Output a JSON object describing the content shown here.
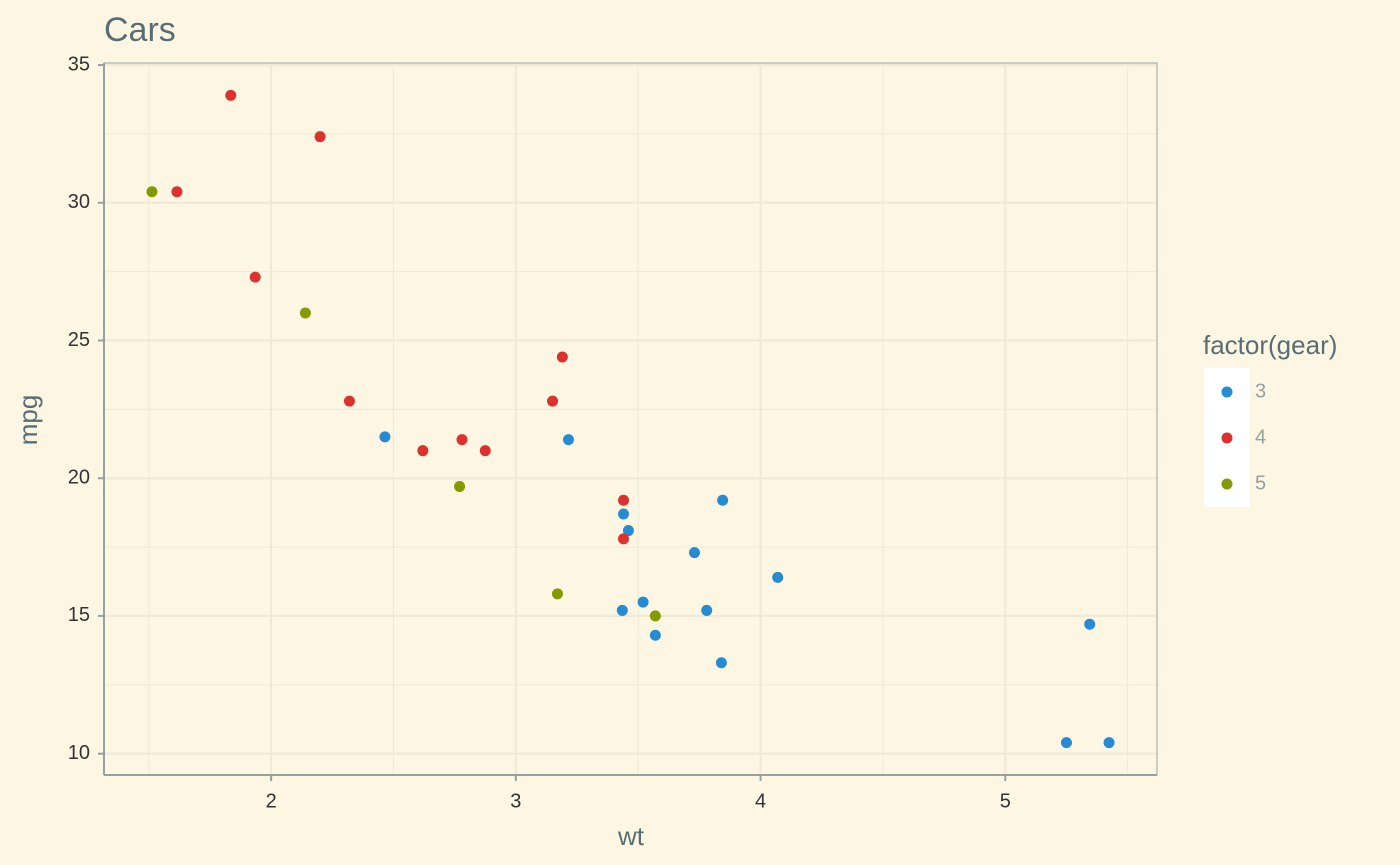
{
  "chart_data": {
    "type": "scatter",
    "title": "Cars",
    "x_label": "wt",
    "y_label": "mpg",
    "legend_title": "factor(gear)",
    "legend_position": "right",
    "grid": true,
    "xlim": [
      1.317,
      5.62
    ],
    "ylim": [
      9.225,
      35.075
    ],
    "xticks": [
      2,
      3,
      4,
      5
    ],
    "yticks": [
      10,
      15,
      20,
      25,
      30,
      35
    ],
    "x_minor_ticks": [
      1.5,
      2.5,
      3.5,
      4.5,
      5.5
    ],
    "y_minor_ticks": [
      12.5,
      17.5,
      22.5,
      27.5,
      32.5
    ],
    "series": [
      {
        "name": "3",
        "color": "#268bd2",
        "x": [
          3.215,
          3.44,
          3.46,
          3.57,
          4.07,
          3.73,
          3.78,
          5.25,
          5.424,
          5.345,
          2.465,
          3.52,
          3.435,
          3.84,
          3.845
        ],
        "values": [
          21.4,
          18.7,
          18.1,
          14.3,
          16.4,
          17.3,
          15.2,
          10.4,
          10.4,
          14.7,
          21.5,
          15.5,
          15.2,
          13.3,
          19.2
        ]
      },
      {
        "name": "4",
        "color": "#dc322f",
        "x": [
          2.62,
          2.875,
          2.32,
          3.19,
          3.15,
          3.44,
          3.44,
          2.2,
          1.615,
          1.835,
          1.935,
          2.78
        ],
        "values": [
          21.0,
          21.0,
          22.8,
          24.4,
          22.8,
          19.2,
          17.8,
          32.4,
          30.4,
          33.9,
          27.3,
          21.4
        ]
      },
      {
        "name": "5",
        "color": "#859900",
        "x": [
          2.14,
          1.513,
          3.17,
          2.77,
          3.57
        ],
        "values": [
          26.0,
          30.4,
          15.8,
          19.7,
          15.0
        ]
      }
    ]
  }
}
